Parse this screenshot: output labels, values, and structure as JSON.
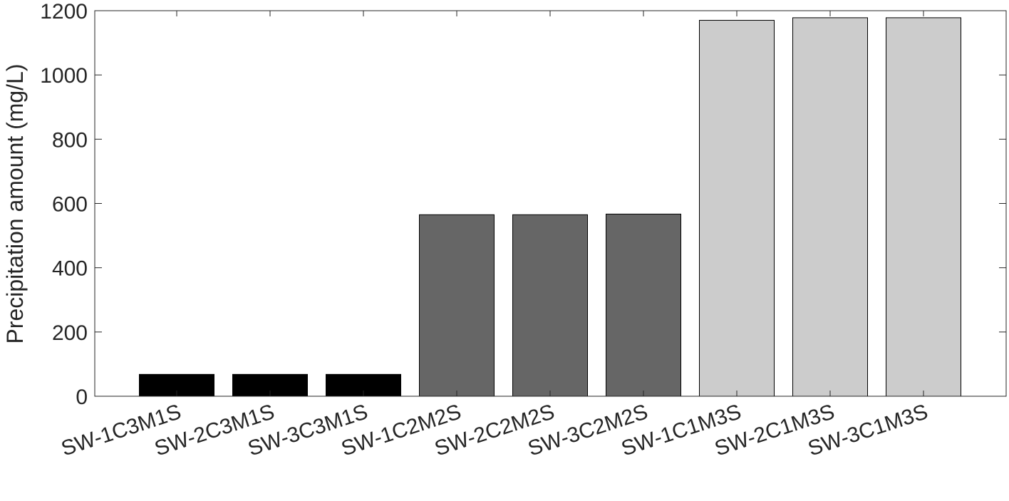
{
  "chart_data": {
    "type": "bar",
    "title": "",
    "xlabel": "",
    "ylabel": "Precipitation amount (mg/L)",
    "ylim": [
      0,
      1200
    ],
    "yticks": [
      0,
      200,
      400,
      600,
      800,
      1000,
      1200
    ],
    "grid": false,
    "categories": [
      "SW-1C3M1S",
      "SW-2C3M1S",
      "SW-3C3M1S",
      "SW-1C2M2S",
      "SW-2C2M2S",
      "SW-3C2M2S",
      "SW-1C1M3S",
      "SW-2C1M3S",
      "SW-3C1M3S"
    ],
    "values": [
      68,
      68,
      68,
      565,
      565,
      567,
      1170,
      1178,
      1178
    ],
    "colors": [
      "#000000",
      "#000000",
      "#000000",
      "#666666",
      "#666666",
      "#666666",
      "#cccccc",
      "#cccccc",
      "#cccccc"
    ]
  }
}
